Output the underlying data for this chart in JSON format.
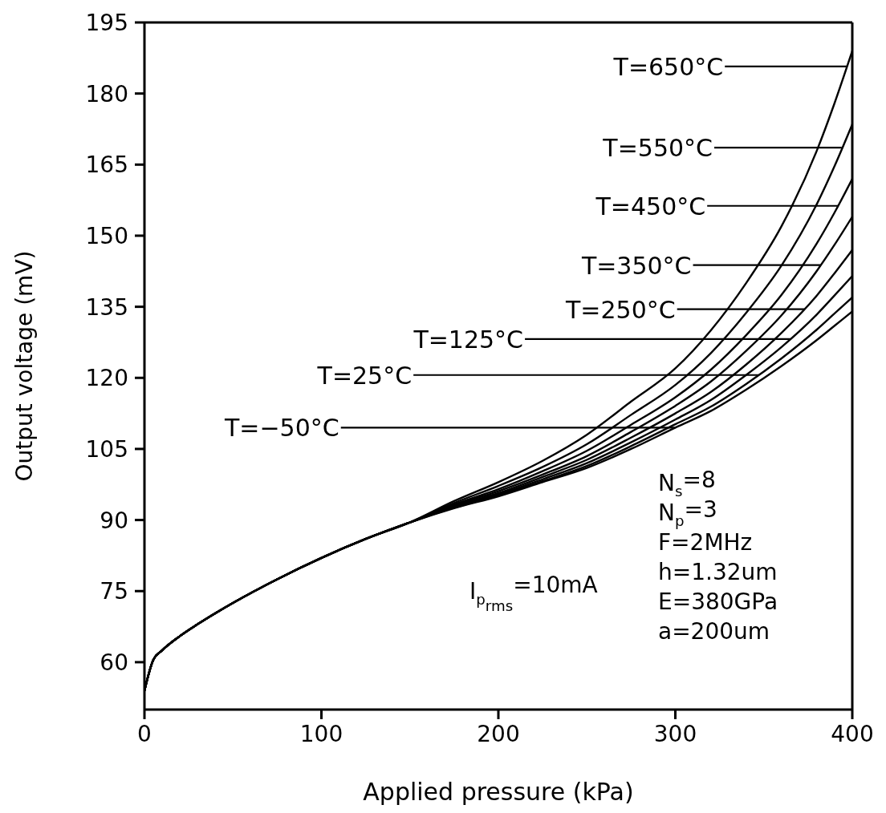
{
  "chart_data": {
    "type": "line",
    "xlabel": "Applied pressure (kPa)",
    "ylabel": "Output voltage (mV)",
    "x": [
      0,
      5,
      10,
      20,
      30,
      50,
      75,
      100,
      125,
      150,
      175,
      200,
      225,
      250,
      275,
      300,
      320,
      340,
      360,
      380,
      390,
      400
    ],
    "series": [
      {
        "color": "#000000",
        "values": [
          54,
          60.5,
          62.5,
          65.5,
          68,
          72.5,
          77.5,
          82,
          86,
          89.5,
          92.5,
          95,
          98,
          101,
          105,
          109.5,
          113,
          117.5,
          122.5,
          128,
          131,
          134
        ]
      },
      {
        "color": "#000000",
        "values": [
          54,
          60.5,
          62.5,
          65.5,
          68,
          72.5,
          77.5,
          82,
          86,
          89.5,
          92.6,
          95.2,
          98.2,
          101.4,
          105.6,
          110.2,
          113.9,
          118.7,
          124.1,
          130.2,
          133.6,
          137
        ]
      },
      {
        "color": "#000000",
        "values": [
          54,
          60.5,
          62.5,
          65.5,
          68,
          72.5,
          77.5,
          82,
          86,
          89.5,
          92.7,
          95.4,
          98.6,
          102,
          106.4,
          111.2,
          115.3,
          120.6,
          126.5,
          133.4,
          137.4,
          141.5
        ]
      },
      {
        "color": "#000000",
        "values": [
          54,
          60.5,
          62.5,
          65.5,
          68,
          72.5,
          77.5,
          82,
          86,
          89.5,
          92.9,
          95.7,
          99.1,
          102.7,
          107.4,
          112.5,
          117,
          122.8,
          129.5,
          137.4,
          142.1,
          147
        ]
      },
      {
        "color": "#000000",
        "values": [
          54,
          60.5,
          62.5,
          65.5,
          68,
          72.5,
          77.5,
          82,
          86,
          89.5,
          93.1,
          96.1,
          99.6,
          103.5,
          108.6,
          114.1,
          119.2,
          125.7,
          133.2,
          142.6,
          148.1,
          154
        ]
      },
      {
        "color": "#000000",
        "values": [
          54,
          60.5,
          62.5,
          65.5,
          68,
          72.5,
          77.5,
          82,
          86,
          89.5,
          93.3,
          96.5,
          100.3,
          104.6,
          110.1,
          115.9,
          121.7,
          129,
          137.5,
          148.4,
          154.9,
          162
        ]
      },
      {
        "color": "#000000",
        "values": [
          54,
          60.5,
          62.5,
          65.5,
          68,
          72.5,
          77.5,
          82,
          86,
          89.5,
          93.6,
          97.2,
          101.2,
          106,
          112.2,
          118.5,
          125.2,
          133.7,
          143.7,
          156.7,
          164.7,
          173.5
        ]
      },
      {
        "color": "#000000",
        "values": [
          54,
          60.5,
          62.5,
          65.5,
          68,
          72.5,
          77.5,
          82,
          86,
          89.5,
          94,
          98,
          102.5,
          108,
          115,
          122,
          130,
          140,
          152,
          168,
          178,
          189
        ]
      }
    ],
    "xlim": [
      0,
      400
    ],
    "xticks": [
      0,
      100,
      200,
      300,
      400
    ],
    "ylim": [
      50,
      195
    ],
    "yticks": [
      60,
      75,
      90,
      105,
      120,
      135,
      150,
      165,
      180,
      195
    ],
    "annotations": [
      {
        "text": "T=−50°C",
        "x": 300,
        "y": 109.5
      },
      {
        "text": "T=25°C",
        "x": 347,
        "y": 120.6
      },
      {
        "text": "T=125°C",
        "x": 365,
        "y": 128.2
      },
      {
        "text": "T=250°C",
        "x": 373,
        "y": 134.5
      },
      {
        "text": "T=350°C",
        "x": 382,
        "y": 143.8
      },
      {
        "text": "T=450°C",
        "x": 392,
        "y": 156.3
      },
      {
        "text": "T=550°C",
        "x": 394,
        "y": 168.6
      },
      {
        "text": "T=650°C",
        "x": 397,
        "y": 185.7
      },
      "N$_{s}$=8",
      "N$_{p}$=3",
      "F=2MHz",
      "h=1.32um",
      "E=380GPa",
      "a=200um",
      "I$_{p}$$_{rms}$=10mA"
    ],
    "line_style": "solid"
  }
}
